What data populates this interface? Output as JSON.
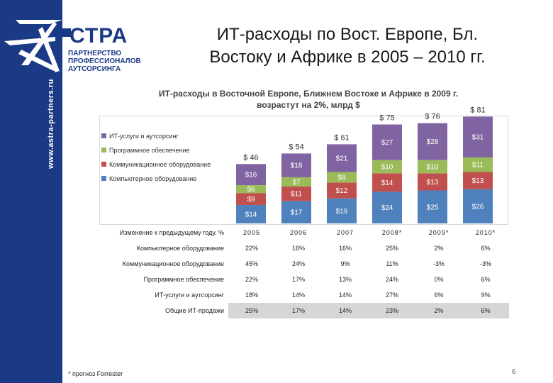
{
  "page": {
    "title_line1": "ИТ-расходы по Вост. Европе, Бл.",
    "title_line2": "Востоку и Африке в 2005 – 2010 гг.",
    "page_number": "6",
    "footnote": "* прогноз Forrester"
  },
  "branding": {
    "logo_name": "СТРА",
    "logo_sub": [
      "ПАРТНЕРСТВО",
      "ПРОФЕССИОНАЛОВ",
      "АУТСОРСИНГА"
    ],
    "website": "www.astra-partners.ru",
    "brand_color": "#1b3a86"
  },
  "chart_data": {
    "type": "bar",
    "stacked": true,
    "title_line1": "ИТ-расходы в Восточной Европе, Ближнем Востоке и Африке в 2009 г.",
    "title_line2": "возрастут на 2%, млрд $",
    "categories": [
      "2005",
      "2006",
      "2007",
      "2008*",
      "2009*",
      "2010*"
    ],
    "series": [
      {
        "name": "Компьютерное оборудование",
        "color": "#4f81bd",
        "values": [
          14,
          17,
          19,
          24,
          25,
          26
        ],
        "labels": [
          "$14",
          "$17",
          "$19",
          "$24",
          "$25",
          "$26"
        ]
      },
      {
        "name": "Коммуникационное оборудование",
        "color": "#c0504d",
        "values": [
          9,
          11,
          12,
          14,
          13,
          13
        ],
        "labels": [
          "$9",
          "$11",
          "$12",
          "$14",
          "$13",
          "$13"
        ]
      },
      {
        "name": "Программное обеспечение",
        "color": "#9bbb59",
        "values": [
          6,
          7,
          8,
          10,
          10,
          11
        ],
        "labels": [
          "$6",
          "$7",
          "$8",
          "$10",
          "$10",
          "$11"
        ]
      },
      {
        "name": "ИТ-услуги и аутсорсинг",
        "color": "#8064a2",
        "values": [
          16,
          18,
          21,
          27,
          28,
          31
        ],
        "labels": [
          "$16",
          "$18",
          "$21",
          "$27",
          "$28",
          "$31"
        ]
      }
    ],
    "totals": [
      46,
      54,
      61,
      75,
      76,
      81
    ],
    "total_labels": [
      "$ 46",
      "$ 54",
      "$ 61",
      "$ 75",
      "$ 76",
      "$ 81"
    ],
    "legend_order": [
      "ИТ-услуги и аутсорсинг",
      "Программное обеспечение",
      "Коммуникационное оборудование",
      "Компьютерное оборудование"
    ],
    "legend_position": "left",
    "grid": false
  },
  "table": {
    "header_label": "Изменение к предыдущему году, %",
    "columns": [
      "2005",
      "2006",
      "2007",
      "2008*",
      "2009*",
      "2010*"
    ],
    "rows": [
      {
        "label": "Компьютерное оборудование",
        "values": [
          "22%",
          "16%",
          "16%",
          "25%",
          "2%",
          "6%"
        ]
      },
      {
        "label": "Коммуникационное оборудование",
        "values": [
          "45%",
          "24%",
          "9%",
          "11%",
          "-3%",
          "-3%"
        ]
      },
      {
        "label": "Программное обеспечение",
        "values": [
          "22%",
          "17%",
          "13%",
          "24%",
          "0%",
          "6%"
        ]
      },
      {
        "label": "ИТ-услуги и аутсорсинг",
        "values": [
          "18%",
          "14%",
          "14%",
          "27%",
          "6%",
          "9%"
        ]
      },
      {
        "label": "Общие ИТ-продажи",
        "values": [
          "25%",
          "17%",
          "14%",
          "23%",
          "2%",
          "6%"
        ],
        "highlight": true
      }
    ]
  }
}
